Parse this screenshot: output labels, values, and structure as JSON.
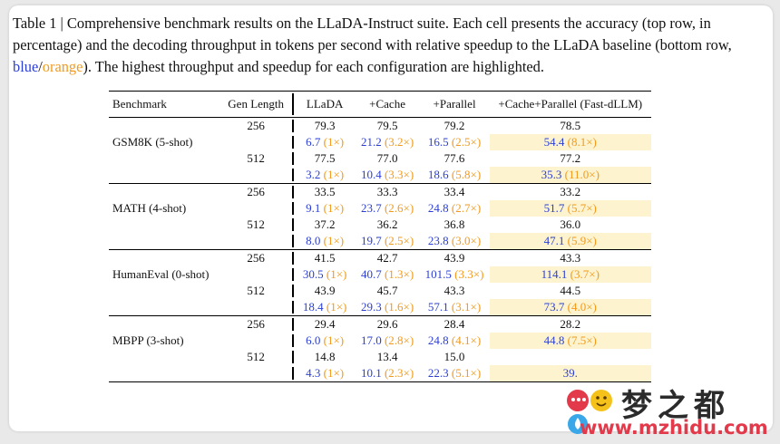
{
  "caption": {
    "part1": "Table 1 | Comprehensive benchmark results on the LLaDA-Instruct suite. Each cell presents the accuracy (top row, in percentage) and the decoding throughput in tokens per second with relative speedup to the LLaDA baseline (bottom row, ",
    "blue_word": "blue",
    "slash": "/",
    "orange_word": "orange",
    "part2": "). The highest throughput and speedup for each configuration are highlighted."
  },
  "colors": {
    "blue": "#2b3fd6",
    "orange": "#f39a1b",
    "highlight": "#fdf4cf"
  },
  "headers": [
    "Benchmark",
    "Gen Length",
    "LLaDA",
    "+Cache",
    "+Parallel",
    "+Cache+Parallel (Fast-dLLM)"
  ],
  "groups": [
    {
      "benchmark": "GSM8K (5-shot)",
      "rows": [
        {
          "gen": "256",
          "acc": [
            "79.3",
            "79.5",
            "79.2",
            "78.5"
          ],
          "thr": [
            [
              "6.7",
              "(1×)"
            ],
            [
              "21.2",
              "(3.2×)"
            ],
            [
              "16.5",
              "(2.5×)"
            ],
            [
              "54.4",
              "(8.1×)"
            ]
          ]
        },
        {
          "gen": "512",
          "acc": [
            "77.5",
            "77.0",
            "77.6",
            "77.2"
          ],
          "thr": [
            [
              "3.2",
              "(1×)"
            ],
            [
              "10.4",
              "(3.3×)"
            ],
            [
              "18.6",
              "(5.8×)"
            ],
            [
              "35.3",
              "(11.0×)"
            ]
          ]
        }
      ]
    },
    {
      "benchmark": "MATH (4-shot)",
      "rows": [
        {
          "gen": "256",
          "acc": [
            "33.5",
            "33.3",
            "33.4",
            "33.2"
          ],
          "thr": [
            [
              "9.1",
              "(1×)"
            ],
            [
              "23.7",
              "(2.6×)"
            ],
            [
              "24.8",
              "(2.7×)"
            ],
            [
              "51.7",
              "(5.7×)"
            ]
          ]
        },
        {
          "gen": "512",
          "acc": [
            "37.2",
            "36.2",
            "36.8",
            "36.0"
          ],
          "thr": [
            [
              "8.0",
              "(1×)"
            ],
            [
              "19.7",
              "(2.5×)"
            ],
            [
              "23.8",
              "(3.0×)"
            ],
            [
              "47.1",
              "(5.9×)"
            ]
          ]
        }
      ]
    },
    {
      "benchmark": "HumanEval (0-shot)",
      "rows": [
        {
          "gen": "256",
          "acc": [
            "41.5",
            "42.7",
            "43.9",
            "43.3"
          ],
          "thr": [
            [
              "30.5",
              "(1×)"
            ],
            [
              "40.7",
              "(1.3×)"
            ],
            [
              "101.5",
              "(3.3×)"
            ],
            [
              "114.1",
              "(3.7×)"
            ]
          ]
        },
        {
          "gen": "512",
          "acc": [
            "43.9",
            "45.7",
            "43.3",
            "44.5"
          ],
          "thr": [
            [
              "18.4",
              "(1×)"
            ],
            [
              "29.3",
              "(1.6×)"
            ],
            [
              "57.1",
              "(3.1×)"
            ],
            [
              "73.7",
              "(4.0×)"
            ]
          ]
        }
      ]
    },
    {
      "benchmark": "MBPP (3-shot)",
      "rows": [
        {
          "gen": "256",
          "acc": [
            "29.4",
            "29.6",
            "28.4",
            "28.2"
          ],
          "thr": [
            [
              "6.0",
              "(1×)"
            ],
            [
              "17.0",
              "(2.8×)"
            ],
            [
              "24.8",
              "(4.1×)"
            ],
            [
              "44.8",
              "(7.5×)"
            ]
          ]
        },
        {
          "gen": "512",
          "acc": [
            "14.8",
            "13.4",
            "15.0",
            ""
          ],
          "thr": [
            [
              "4.3",
              "(1×)"
            ],
            [
              "10.1",
              "(2.3×)"
            ],
            [
              "22.3",
              "(5.1×)"
            ],
            [
              "39.",
              ""
            ]
          ]
        }
      ]
    }
  ],
  "watermark": {
    "title": "梦之都",
    "url": "www.mzhidu.com"
  }
}
